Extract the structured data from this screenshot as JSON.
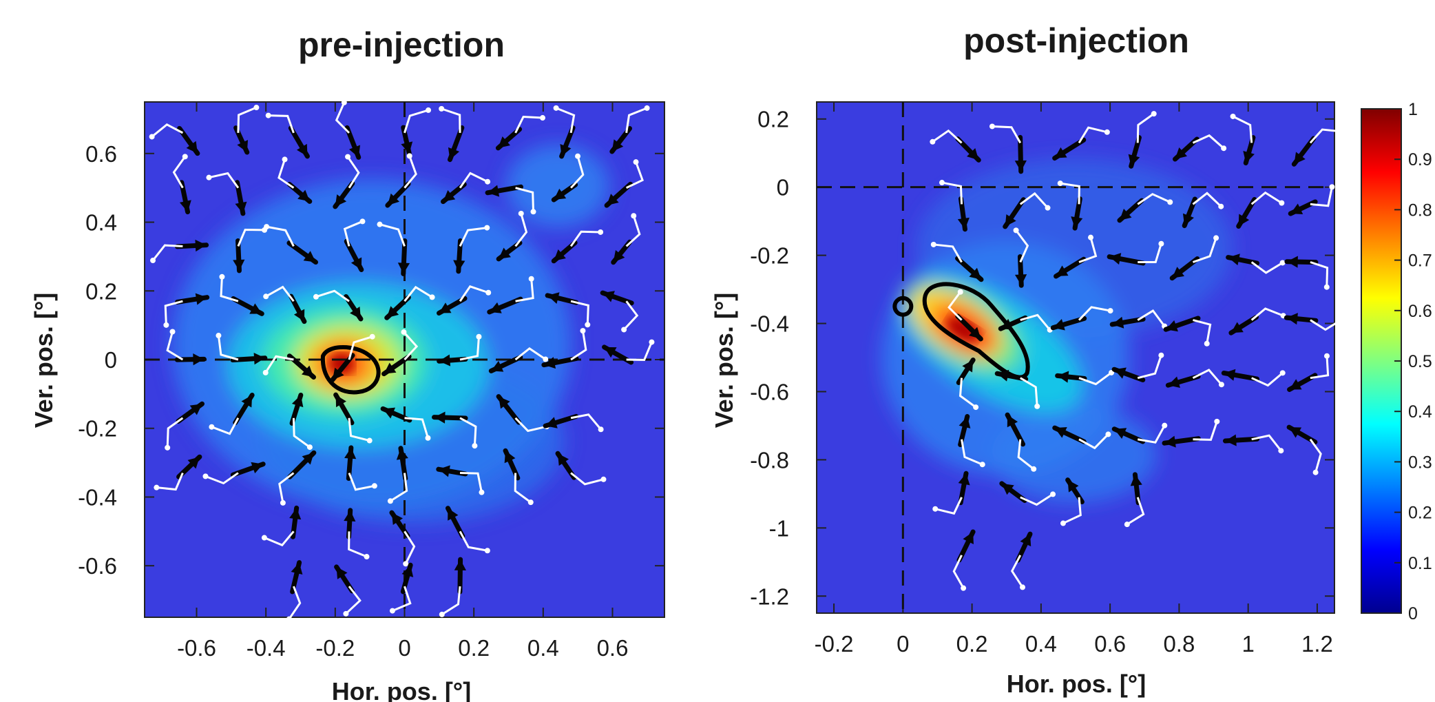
{
  "chart_data": [
    {
      "type": "heatmap",
      "panel": "pre",
      "title": "pre-injection",
      "xlabel": "Hor. pos. [°]",
      "ylabel": "Ver. pos. [°]",
      "xlim": [
        -0.75,
        0.75
      ],
      "ylim": [
        -0.75,
        0.75
      ],
      "xticks": [
        -0.6,
        -0.4,
        -0.2,
        0,
        0.2,
        0.4,
        0.6
      ],
      "xticklabels": [
        "-0.6",
        "-0.4",
        "-0.2",
        "0",
        "0.2",
        "0.4",
        "0.6"
      ],
      "yticks": [
        -0.6,
        -0.4,
        -0.2,
        0,
        0.2,
        0.4,
        0.6
      ],
      "yticklabels": [
        "-0.6",
        "-0.4",
        "-0.2",
        "0",
        "0.2",
        "0.4",
        "0.6"
      ],
      "reference_lines": {
        "x": 0,
        "y": 0,
        "style": "dashed"
      },
      "hotspot": {
        "center": [
          -0.16,
          -0.03
        ],
        "contour_level": 0.9
      },
      "arrow_grid": {
        "x": [
          -0.64,
          -0.48,
          -0.32,
          -0.16,
          0.0,
          0.16,
          0.32,
          0.48,
          0.64
        ],
        "y": [
          0.66,
          0.5,
          0.33,
          0.17,
          0.0,
          -0.17,
          -0.33,
          -0.5,
          -0.66
        ]
      }
    },
    {
      "type": "heatmap",
      "panel": "post",
      "title": "post-injection",
      "xlabel": "Hor. pos. [°]",
      "ylabel": "Ver. pos. [°]",
      "xlim": [
        -0.25,
        1.25
      ],
      "ylim": [
        -1.25,
        0.25
      ],
      "xticks": [
        -0.2,
        0,
        0.2,
        0.4,
        0.6,
        0.8,
        1,
        1.2
      ],
      "xticklabels": [
        "-0.2",
        "0",
        "0.2",
        "0.4",
        "0.6",
        "0.8",
        "1",
        "1.2"
      ],
      "yticks": [
        0.2,
        0,
        -0.2,
        -0.4,
        -0.6,
        -0.8,
        -1,
        -1.2
      ],
      "yticklabels": [
        "0.2",
        "0",
        "-0.2",
        "-0.4",
        "-0.6",
        "-0.8",
        "-1",
        "-1.2"
      ],
      "reference_lines": {
        "x": 0,
        "y": 0,
        "style": "dashed"
      },
      "hotspot": {
        "center": [
          0.22,
          -0.42
        ],
        "contour_level": 0.9
      },
      "marker_circle": [
        0.0,
        -0.35
      ],
      "arrow_grid": {
        "x": [
          0.17,
          0.34,
          0.51,
          0.68,
          0.84,
          1.01,
          1.18
        ],
        "y": [
          0.13,
          -0.05,
          -0.22,
          -0.39,
          -0.56,
          -0.74,
          -0.91,
          -1.08
        ]
      }
    }
  ],
  "colorbar": {
    "range": [
      0,
      1
    ],
    "ticks": [
      1,
      0.9,
      0.8,
      0.7,
      0.6,
      0.5,
      0.4,
      0.3,
      0.2,
      0.1,
      0
    ],
    "ticklabels": [
      "1",
      "0.9",
      "0.8",
      "0.7",
      "0.6",
      "0.5",
      "0.4",
      "0.3",
      "0.2",
      "0.1",
      "0"
    ],
    "colormap": "jet",
    "colors": [
      "#00008f",
      "#0000ff",
      "#00ffff",
      "#80ff80",
      "#ffff00",
      "#ff7f00",
      "#ff0000",
      "#800000"
    ]
  }
}
